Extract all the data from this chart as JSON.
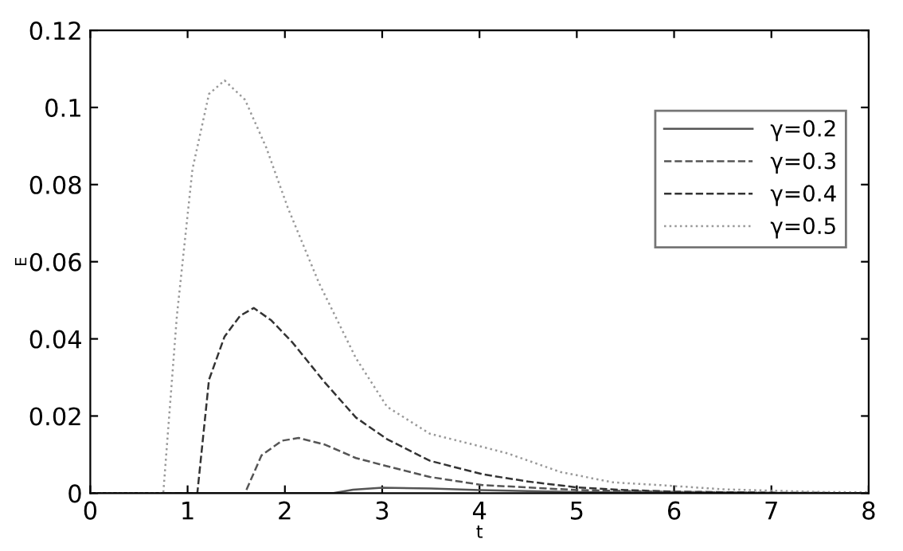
{
  "chart_data": {
    "type": "line",
    "xlabel": "t",
    "ylabel": "E",
    "xlim": [
      0,
      8
    ],
    "ylim": [
      0,
      0.12
    ],
    "xticks": [
      0,
      1,
      2,
      3,
      4,
      5,
      6,
      7,
      8
    ],
    "yticks": [
      0,
      0.02,
      0.04,
      0.06,
      0.08,
      0.1,
      0.12
    ],
    "grid": false,
    "legend": "top right",
    "marker": "none",
    "series": [
      {
        "name": "γ=0.2",
        "color": "#555555",
        "line_style": "solid",
        "x": [
          0,
          2.5,
          2.7,
          3.0,
          3.5,
          4,
          5,
          6,
          7,
          8
        ],
        "values": [
          0,
          0,
          0.0009,
          0.0014,
          0.0012,
          0.0008,
          0.0003,
          0.0001,
          0,
          0
        ]
      },
      {
        "name": "γ=0.3",
        "color": "#555555",
        "line_style": "dashed",
        "x": [
          0,
          1.59,
          1.76,
          1.97,
          2.14,
          2.41,
          2.73,
          3.05,
          3.49,
          4.03,
          5,
          6,
          7,
          8
        ],
        "values": [
          0,
          0,
          0.0098,
          0.0136,
          0.0143,
          0.0126,
          0.0091,
          0.007,
          0.0042,
          0.0021,
          0.0008,
          0.0003,
          0.0001,
          0
        ]
      },
      {
        "name": "γ=0.4",
        "color": "#333333",
        "line_style": "dashed",
        "x": [
          0,
          1.1,
          1.22,
          1.38,
          1.54,
          1.68,
          1.86,
          2.08,
          2.41,
          2.73,
          3.05,
          3.49,
          4.03,
          4.5,
          5,
          5.5,
          6,
          7,
          8
        ],
        "values": [
          0,
          0,
          0.0294,
          0.0406,
          0.046,
          0.048,
          0.0448,
          0.039,
          0.0287,
          0.0196,
          0.014,
          0.0084,
          0.0049,
          0.003,
          0.0015,
          0.0008,
          0.0004,
          0.0001,
          0
        ]
      },
      {
        "name": "γ=0.5",
        "color": "#999999",
        "line_style": "dotted",
        "x": [
          0,
          0.75,
          0.89,
          1.05,
          1.22,
          1.38,
          1.59,
          1.81,
          2.03,
          2.35,
          2.73,
          3.05,
          3.49,
          4.03,
          4.29,
          4.83,
          5.37,
          5.91,
          6.5,
          7.5,
          8
        ],
        "values": [
          0,
          0,
          0.046,
          0.084,
          0.1035,
          0.107,
          0.102,
          0.0895,
          0.074,
          0.0545,
          0.035,
          0.0224,
          0.0154,
          0.012,
          0.0103,
          0.0055,
          0.0028,
          0.002,
          0.001,
          0.0003,
          0.0002
        ]
      }
    ]
  }
}
